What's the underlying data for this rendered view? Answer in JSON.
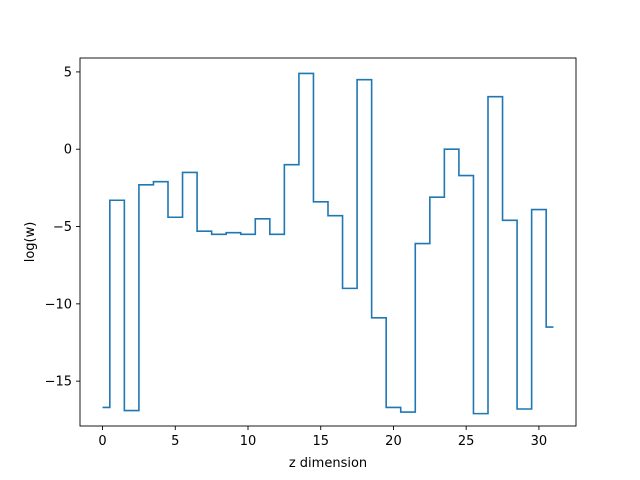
{
  "chart_data": {
    "type": "line",
    "drawstyle": "steps-mid",
    "title": "",
    "xlabel": "z dimension",
    "ylabel": "log(w)",
    "xlim": [
      -1.55,
      32.55
    ],
    "ylim": [
      -17.9,
      5.9
    ],
    "x_ticks": [
      0,
      5,
      10,
      15,
      20,
      25,
      30
    ],
    "y_ticks": [
      5,
      0,
      -5,
      -10,
      -15
    ],
    "y_tick_labels": [
      "5",
      "0",
      "−5",
      "−10",
      "−15"
    ],
    "grid": false,
    "series": [
      {
        "color": "#1f77b4",
        "x": [
          0,
          1,
          2,
          3,
          4,
          5,
          6,
          7,
          8,
          9,
          10,
          11,
          12,
          13,
          14,
          15,
          16,
          17,
          18,
          19,
          20,
          21,
          22,
          23,
          24,
          25,
          26,
          27,
          28,
          29,
          30,
          31
        ],
        "y": [
          -16.7,
          -3.3,
          -16.9,
          -2.3,
          -2.1,
          -4.4,
          -1.5,
          -5.3,
          -5.5,
          -5.4,
          -5.5,
          -4.5,
          -5.5,
          -1.0,
          4.9,
          -3.4,
          -4.3,
          -9.0,
          4.5,
          -10.9,
          -16.7,
          -17.0,
          -6.1,
          -3.1,
          0.0,
          -1.7,
          -17.1,
          3.4,
          -4.6,
          -16.8,
          -3.9,
          -11.5
        ]
      }
    ]
  }
}
